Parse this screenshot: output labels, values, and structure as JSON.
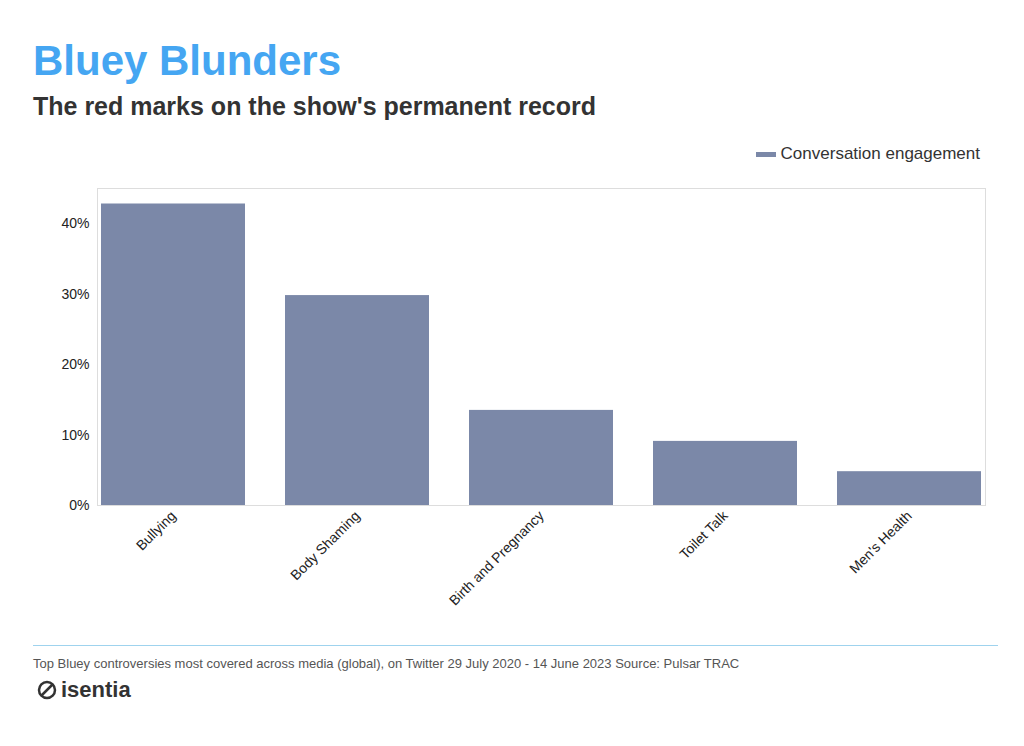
{
  "chart_data": {
    "type": "bar",
    "title": "Bluey Blunders",
    "subtitle": "The red marks on the show's permanent record",
    "categories": [
      "Bullying",
      "Body Shaming",
      "Birth and Pregnancy",
      "Toilet Talk",
      "Men's Health"
    ],
    "series": [
      {
        "name": "Conversation engagement",
        "color": "#7b88a8",
        "values": [
          42.8,
          29.8,
          13.5,
          9.1,
          4.8
        ]
      }
    ],
    "ylim": [
      0,
      45
    ],
    "yticks": [
      {
        "value": 0,
        "label": "0%"
      },
      {
        "value": 10,
        "label": "10%"
      },
      {
        "value": 20,
        "label": "20%"
      },
      {
        "value": 30,
        "label": "30%"
      },
      {
        "value": 40,
        "label": "40%"
      }
    ],
    "grid": false,
    "legend": "top-right",
    "caption": "Top Bluey controversies most covered across media (global), on Twitter 29 July 2020 - 14 June 2023 Source: Pulsar TRAC",
    "brand": "isentia"
  }
}
